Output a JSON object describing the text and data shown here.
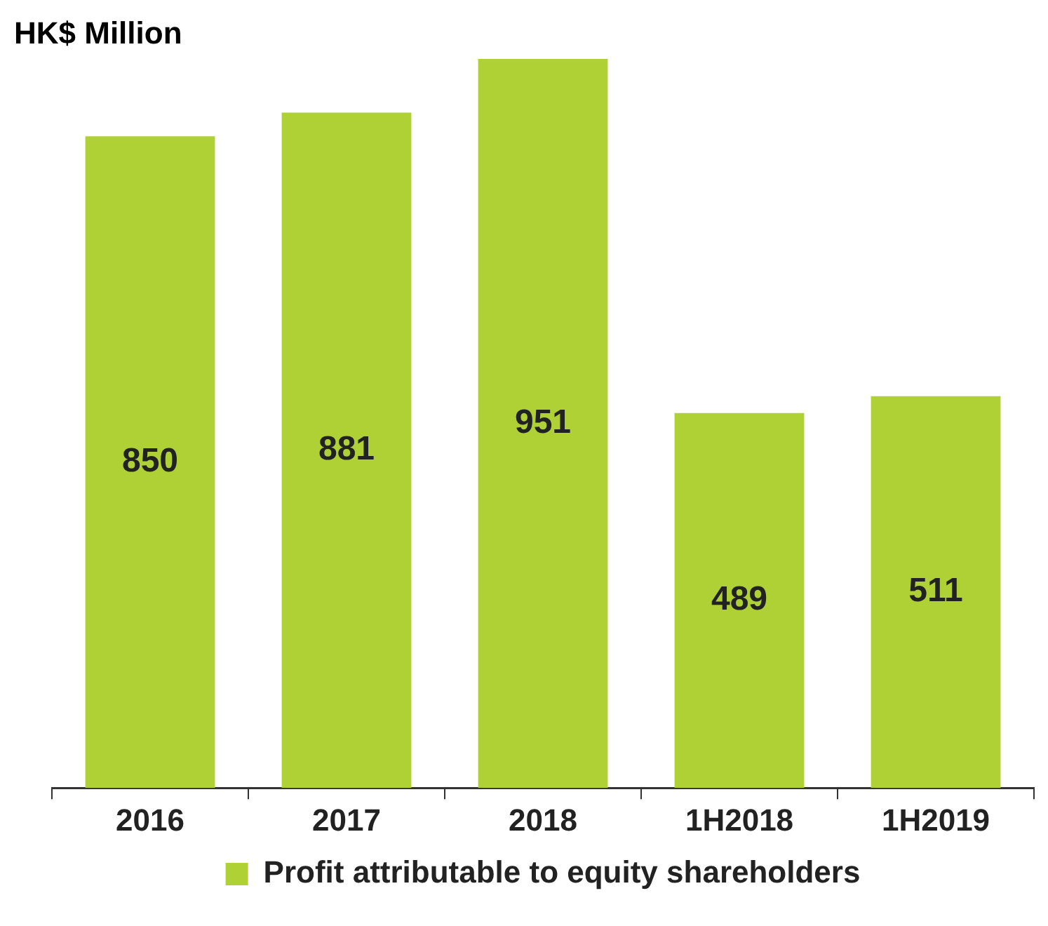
{
  "chart_data": {
    "type": "bar",
    "ylabel": "HK$ Million",
    "categories": [
      "2016",
      "2017",
      "2018",
      "1H2018",
      "1H2019"
    ],
    "series": [
      {
        "name": "Profit attributable to equity shareholders",
        "color": "#b0d136",
        "values": [
          850,
          881,
          951,
          489,
          511
        ]
      }
    ],
    "data_labels": true,
    "legend": "bottom"
  }
}
